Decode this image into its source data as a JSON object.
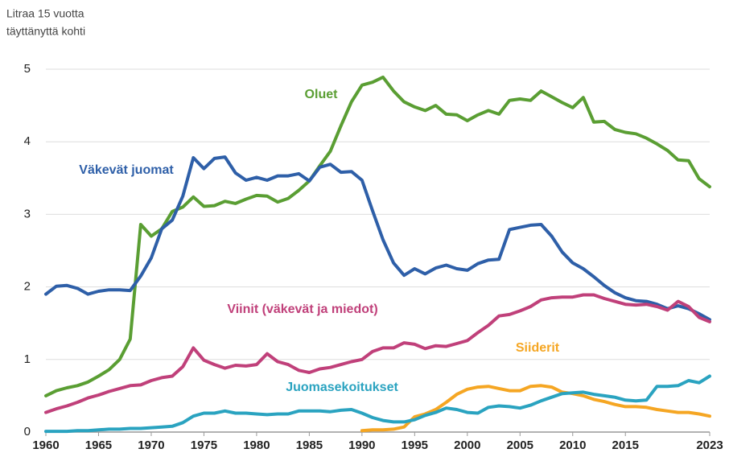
{
  "chart_data": {
    "type": "line",
    "ylabel": [
      "Litraa 15 vuotta",
      "täyttänyttä kohti"
    ],
    "x": [
      1960,
      1961,
      1962,
      1963,
      1964,
      1965,
      1966,
      1967,
      1968,
      1969,
      1970,
      1971,
      1972,
      1973,
      1974,
      1975,
      1976,
      1977,
      1978,
      1979,
      1980,
      1981,
      1982,
      1983,
      1984,
      1985,
      1986,
      1987,
      1988,
      1989,
      1990,
      1991,
      1992,
      1993,
      1994,
      1995,
      1996,
      1997,
      1998,
      1999,
      2000,
      2001,
      2002,
      2003,
      2004,
      2005,
      2006,
      2007,
      2008,
      2009,
      2010,
      2011,
      2012,
      2013,
      2014,
      2015,
      2016,
      2017,
      2018,
      2019,
      2020,
      2021,
      2022,
      2023
    ],
    "xlim": [
      1960,
      2023
    ],
    "xticks": [
      1960,
      1965,
      1970,
      1975,
      1980,
      1985,
      1990,
      1995,
      2000,
      2005,
      2010,
      2015,
      2023
    ],
    "ylim": [
      0,
      5
    ],
    "yticks": [
      0,
      1,
      2,
      3,
      4,
      5
    ],
    "grid": true,
    "series": [
      {
        "name": "Oluet",
        "color": "#5a9e33",
        "values": [
          0.5,
          0.57,
          0.61,
          0.64,
          0.69,
          0.77,
          0.86,
          1.0,
          1.28,
          2.86,
          2.7,
          2.8,
          3.04,
          3.1,
          3.24,
          3.11,
          3.12,
          3.18,
          3.15,
          3.21,
          3.26,
          3.25,
          3.17,
          3.22,
          3.33,
          3.46,
          3.67,
          3.87,
          4.22,
          4.55,
          4.78,
          4.82,
          4.89,
          4.7,
          4.55,
          4.48,
          4.43,
          4.5,
          4.38,
          4.37,
          4.29,
          4.37,
          4.43,
          4.38,
          4.57,
          4.59,
          4.57,
          4.7,
          4.62,
          4.54,
          4.47,
          4.61,
          4.27,
          4.28,
          4.17,
          4.13,
          4.11,
          4.05,
          3.97,
          3.88,
          3.75,
          3.74,
          3.49,
          3.38
        ]
      },
      {
        "name": "Väkevät juomat",
        "color": "#2e5fa8",
        "values": [
          1.9,
          2.01,
          2.02,
          1.98,
          1.9,
          1.94,
          1.96,
          1.96,
          1.95,
          2.15,
          2.4,
          2.8,
          2.92,
          3.25,
          3.78,
          3.63,
          3.77,
          3.79,
          3.57,
          3.47,
          3.51,
          3.47,
          3.53,
          3.53,
          3.56,
          3.46,
          3.65,
          3.69,
          3.58,
          3.59,
          3.47,
          3.05,
          2.65,
          2.33,
          2.16,
          2.25,
          2.18,
          2.26,
          2.3,
          2.25,
          2.23,
          2.32,
          2.37,
          2.38,
          2.79,
          2.82,
          2.85,
          2.86,
          2.7,
          2.48,
          2.33,
          2.25,
          2.14,
          2.02,
          1.92,
          1.85,
          1.81,
          1.8,
          1.76,
          1.7,
          1.74,
          1.7,
          1.63,
          1.55
        ]
      },
      {
        "name": "Viinit (väkevät ja miedot)",
        "color": "#c0407a",
        "values": [
          0.27,
          0.32,
          0.36,
          0.41,
          0.47,
          0.51,
          0.56,
          0.6,
          0.64,
          0.65,
          0.71,
          0.75,
          0.77,
          0.9,
          1.16,
          0.99,
          0.93,
          0.88,
          0.92,
          0.91,
          0.93,
          1.08,
          0.97,
          0.93,
          0.85,
          0.82,
          0.87,
          0.89,
          0.93,
          0.97,
          1.0,
          1.11,
          1.16,
          1.16,
          1.23,
          1.21,
          1.15,
          1.19,
          1.18,
          1.22,
          1.26,
          1.37,
          1.47,
          1.6,
          1.62,
          1.67,
          1.73,
          1.82,
          1.85,
          1.86,
          1.86,
          1.89,
          1.89,
          1.84,
          1.8,
          1.76,
          1.75,
          1.76,
          1.73,
          1.68,
          1.8,
          1.73,
          1.58,
          1.52
        ]
      },
      {
        "name": "Siiderit",
        "color": "#f5a623",
        "values": [
          null,
          null,
          null,
          null,
          null,
          null,
          null,
          null,
          null,
          null,
          null,
          null,
          null,
          null,
          null,
          null,
          null,
          null,
          null,
          null,
          null,
          null,
          null,
          null,
          null,
          null,
          null,
          null,
          null,
          null,
          0.02,
          0.03,
          0.03,
          0.04,
          0.07,
          0.21,
          0.25,
          0.31,
          0.41,
          0.52,
          0.59,
          0.62,
          0.63,
          0.6,
          0.57,
          0.57,
          0.63,
          0.64,
          0.62,
          0.55,
          0.53,
          0.5,
          0.45,
          0.42,
          0.38,
          0.35,
          0.35,
          0.34,
          0.31,
          0.29,
          0.27,
          0.27,
          0.25,
          0.22
        ]
      },
      {
        "name": "Juomasekoitukset",
        "color": "#2aa3c0",
        "values": [
          0.01,
          0.01,
          0.01,
          0.02,
          0.02,
          0.03,
          0.04,
          0.04,
          0.05,
          0.05,
          0.06,
          0.07,
          0.08,
          0.13,
          0.22,
          0.26,
          0.26,
          0.29,
          0.26,
          0.26,
          0.25,
          0.24,
          0.25,
          0.25,
          0.29,
          0.29,
          0.29,
          0.28,
          0.3,
          0.31,
          0.26,
          0.2,
          0.16,
          0.14,
          0.14,
          0.17,
          0.23,
          0.27,
          0.33,
          0.31,
          0.27,
          0.26,
          0.34,
          0.36,
          0.35,
          0.33,
          0.37,
          0.43,
          0.48,
          0.53,
          0.54,
          0.55,
          0.52,
          0.5,
          0.48,
          0.44,
          0.43,
          0.44,
          0.63,
          0.63,
          0.64,
          0.71,
          0.68,
          0.77
        ]
      }
    ]
  }
}
